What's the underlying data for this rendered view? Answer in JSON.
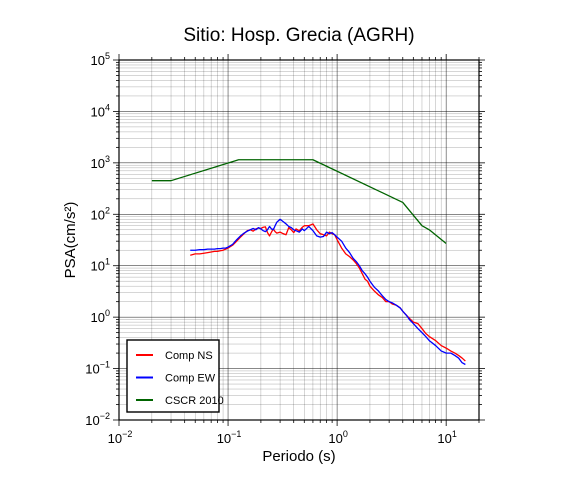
{
  "chart_data": {
    "type": "line",
    "title": "Sitio: Hosp. Grecia (AGRH)",
    "xlabel": "Periodo (s)",
    "ylabel": "PSA(cm/s²)",
    "xscale": "log",
    "yscale": "log",
    "xlim": [
      0.01,
      20
    ],
    "ylim": [
      0.01,
      100000
    ],
    "grid": true,
    "legend_position": "bottom-left",
    "x_ticks": [
      {
        "value": 0.01,
        "base": "10",
        "exp": "−2"
      },
      {
        "value": 0.1,
        "base": "10",
        "exp": "−1"
      },
      {
        "value": 1,
        "base": "10",
        "exp": "0"
      },
      {
        "value": 10,
        "base": "10",
        "exp": "1"
      }
    ],
    "y_ticks": [
      {
        "value": 0.01,
        "base": "10",
        "exp": "−2"
      },
      {
        "value": 0.1,
        "base": "10",
        "exp": "−1"
      },
      {
        "value": 1,
        "base": "10",
        "exp": "0"
      },
      {
        "value": 10,
        "base": "10",
        "exp": "1"
      },
      {
        "value": 100,
        "base": "10",
        "exp": "2"
      },
      {
        "value": 1000,
        "base": "10",
        "exp": "3"
      },
      {
        "value": 10000,
        "base": "10",
        "exp": "4"
      },
      {
        "value": 100000,
        "base": "10",
        "exp": "5"
      }
    ],
    "series": [
      {
        "name": "Comp NS",
        "color": "#ff0000",
        "x": [
          0.045,
          0.05,
          0.055,
          0.06,
          0.065,
          0.07,
          0.075,
          0.08,
          0.085,
          0.09,
          0.095,
          0.1,
          0.11,
          0.12,
          0.13,
          0.14,
          0.15,
          0.16,
          0.17,
          0.18,
          0.19,
          0.2,
          0.21,
          0.22,
          0.23,
          0.24,
          0.25,
          0.26,
          0.27,
          0.28,
          0.3,
          0.32,
          0.34,
          0.36,
          0.38,
          0.4,
          0.42,
          0.45,
          0.48,
          0.5,
          0.55,
          0.6,
          0.65,
          0.7,
          0.75,
          0.8,
          0.85,
          0.9,
          0.95,
          1.0,
          1.1,
          1.2,
          1.3,
          1.4,
          1.5,
          1.6,
          1.7,
          1.8,
          1.9,
          2.0,
          2.2,
          2.4,
          2.6,
          2.8,
          3.0,
          3.2,
          3.5,
          3.8,
          4.0,
          4.3,
          4.6,
          5.0,
          5.5,
          6.0,
          6.5,
          7.0,
          8.0,
          9.0,
          10.0,
          11.0,
          12.0,
          13.0,
          14.0,
          15.0
        ],
        "y": [
          16,
          17,
          17,
          17.5,
          18,
          18.5,
          19,
          19,
          19.5,
          20,
          21,
          22,
          25,
          30,
          36,
          42,
          48,
          50,
          47,
          52,
          54,
          53,
          56,
          57,
          44,
          38,
          45,
          52,
          46,
          43,
          45,
          42,
          40,
          55,
          50,
          44,
          52,
          48,
          56,
          60,
          60,
          65,
          50,
          42,
          40,
          38,
          45,
          42,
          40,
          32,
          22,
          17,
          15,
          13,
          11,
          9,
          7,
          5.5,
          5,
          4,
          3.2,
          2.7,
          2.4,
          2.0,
          2.0,
          1.8,
          1.7,
          1.5,
          1.3,
          1.1,
          0.95,
          0.8,
          0.75,
          0.6,
          0.48,
          0.42,
          0.35,
          0.28,
          0.25,
          0.22,
          0.2,
          0.18,
          0.16,
          0.14
        ]
      },
      {
        "name": "Comp EW",
        "color": "#0000ff",
        "x": [
          0.045,
          0.05,
          0.055,
          0.06,
          0.065,
          0.07,
          0.075,
          0.08,
          0.085,
          0.09,
          0.095,
          0.1,
          0.11,
          0.12,
          0.13,
          0.14,
          0.15,
          0.16,
          0.17,
          0.18,
          0.19,
          0.2,
          0.21,
          0.22,
          0.23,
          0.24,
          0.25,
          0.26,
          0.27,
          0.28,
          0.3,
          0.32,
          0.34,
          0.36,
          0.38,
          0.4,
          0.42,
          0.45,
          0.48,
          0.5,
          0.55,
          0.6,
          0.65,
          0.7,
          0.75,
          0.8,
          0.85,
          0.9,
          0.95,
          1.0,
          1.1,
          1.2,
          1.3,
          1.4,
          1.5,
          1.6,
          1.7,
          1.8,
          1.9,
          2.0,
          2.2,
          2.4,
          2.6,
          2.8,
          3.0,
          3.2,
          3.5,
          3.8,
          4.0,
          4.3,
          4.6,
          5.0,
          5.5,
          6.0,
          6.5,
          7.0,
          8.0,
          9.0,
          10.0,
          11.0,
          12.0,
          13.0,
          14.0,
          15.0
        ],
        "y": [
          20,
          20,
          20.5,
          20.5,
          21,
          21,
          21,
          21.5,
          21.5,
          22,
          22,
          23,
          26,
          32,
          38,
          43,
          47,
          50,
          53,
          50,
          55,
          52,
          48,
          46,
          50,
          58,
          52,
          50,
          60,
          70,
          80,
          72,
          65,
          58,
          55,
          50,
          48,
          45,
          52,
          48,
          58,
          48,
          38,
          36,
          37,
          45,
          42,
          44,
          40,
          36,
          30,
          22,
          18,
          14,
          12,
          10,
          8,
          7,
          6,
          5,
          3.8,
          3.2,
          2.6,
          2.2,
          2.0,
          1.9,
          1.7,
          1.5,
          1.3,
          1.1,
          0.9,
          0.75,
          0.6,
          0.5,
          0.42,
          0.35,
          0.28,
          0.22,
          0.2,
          0.2,
          0.18,
          0.16,
          0.13,
          0.12
        ]
      },
      {
        "name": "CSCR 2010",
        "color": "#006400",
        "x": [
          0.02,
          0.03,
          0.125,
          0.6,
          4.0,
          6.0,
          7.0,
          10.0
        ],
        "y": [
          450,
          450,
          1150,
          1150,
          170,
          60,
          50,
          27
        ]
      }
    ]
  }
}
